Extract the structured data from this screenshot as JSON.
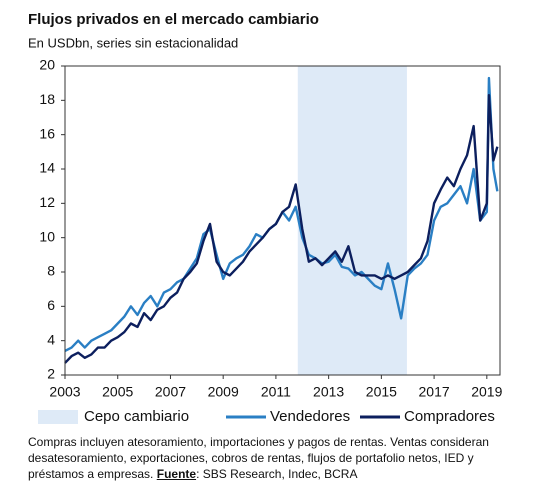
{
  "chart_data": {
    "type": "line",
    "title": "Flujos privados en el mercado cambiario",
    "subtitle": "En USDbn, series sin estacionalidad",
    "x": [
      2003,
      2003.25,
      2003.5,
      2003.75,
      2004,
      2004.25,
      2004.5,
      2004.75,
      2005,
      2005.25,
      2005.5,
      2005.75,
      2006,
      2006.25,
      2006.5,
      2006.75,
      2007,
      2007.25,
      2007.5,
      2007.75,
      2008,
      2008.25,
      2008.5,
      2008.75,
      2009,
      2009.25,
      2009.5,
      2009.75,
      2010,
      2010.25,
      2010.5,
      2010.75,
      2011,
      2011.25,
      2011.5,
      2011.75,
      2012,
      2012.25,
      2012.5,
      2012.75,
      2013,
      2013.25,
      2013.5,
      2013.75,
      2014,
      2014.25,
      2014.5,
      2014.75,
      2015,
      2015.25,
      2015.5,
      2015.75,
      2016,
      2016.25,
      2016.5,
      2016.75,
      2017,
      2017.25,
      2017.5,
      2017.75,
      2018,
      2018.25,
      2018.5,
      2018.75,
      2019,
      2019.08,
      2019.25,
      2019.4
    ],
    "series": [
      {
        "name": "Vendedores",
        "color": "#2a7fc4",
        "values": [
          3.4,
          3.6,
          4.0,
          3.6,
          4.0,
          4.2,
          4.4,
          4.6,
          5.0,
          5.4,
          6.0,
          5.5,
          6.2,
          6.6,
          6.0,
          6.8,
          7.0,
          7.4,
          7.6,
          8.2,
          8.8,
          10.2,
          10.5,
          9.0,
          7.6,
          8.5,
          8.8,
          9.0,
          9.5,
          10.2,
          10.0,
          10.5,
          10.8,
          11.5,
          11.0,
          11.8,
          10.0,
          9.0,
          8.8,
          8.5,
          8.6,
          9.0,
          8.3,
          8.2,
          7.8,
          8.0,
          7.6,
          7.2,
          7.0,
          8.5,
          7.0,
          5.3,
          7.8,
          8.2,
          8.5,
          9.0,
          11.0,
          11.8,
          12.0,
          12.5,
          13.0,
          12.0,
          14.0,
          11.0,
          11.5,
          19.3,
          14.0,
          12.7
        ]
      },
      {
        "name": "Compradores",
        "color": "#0c1f5e",
        "values": [
          2.7,
          3.1,
          3.3,
          3.0,
          3.2,
          3.6,
          3.6,
          4.0,
          4.2,
          4.5,
          5.0,
          4.8,
          5.6,
          5.2,
          5.8,
          6.0,
          6.5,
          6.8,
          7.6,
          8.0,
          8.5,
          9.8,
          10.8,
          8.6,
          8.0,
          7.8,
          8.2,
          8.6,
          9.2,
          9.6,
          10.0,
          10.5,
          10.8,
          11.5,
          11.8,
          13.1,
          10.5,
          8.6,
          8.8,
          8.4,
          8.8,
          9.2,
          8.6,
          9.5,
          8.0,
          7.8,
          7.8,
          7.8,
          7.6,
          7.8,
          7.6,
          7.8,
          8.0,
          8.4,
          8.8,
          9.8,
          12.0,
          12.8,
          13.5,
          13.0,
          14.0,
          14.8,
          16.5,
          11.0,
          12.0,
          18.3,
          14.5,
          15.3
        ]
      }
    ],
    "shade": {
      "label": "Cepo cambiario",
      "color": "#deeaf7",
      "x": [
        2011.83,
        2015.97
      ]
    },
    "xlim": [
      2003,
      2019.5
    ],
    "xticks": [
      2003,
      2005,
      2007,
      2009,
      2011,
      2013,
      2015,
      2017,
      2019
    ],
    "ylim": [
      2,
      20
    ],
    "yticks": [
      2,
      4,
      6,
      8,
      10,
      12,
      14,
      16,
      18,
      20
    ],
    "grid": false,
    "note": "Compras incluyen atesoramiento, importaciones y pagos de rentas. Ventas consideran desatesoramiento, exportaciones, cobros de rentas, flujos de portafolio netos, IED y préstamos a empresas.",
    "source_label": "Fuente",
    "source": ": SBS Research, Indec, BCRA"
  }
}
